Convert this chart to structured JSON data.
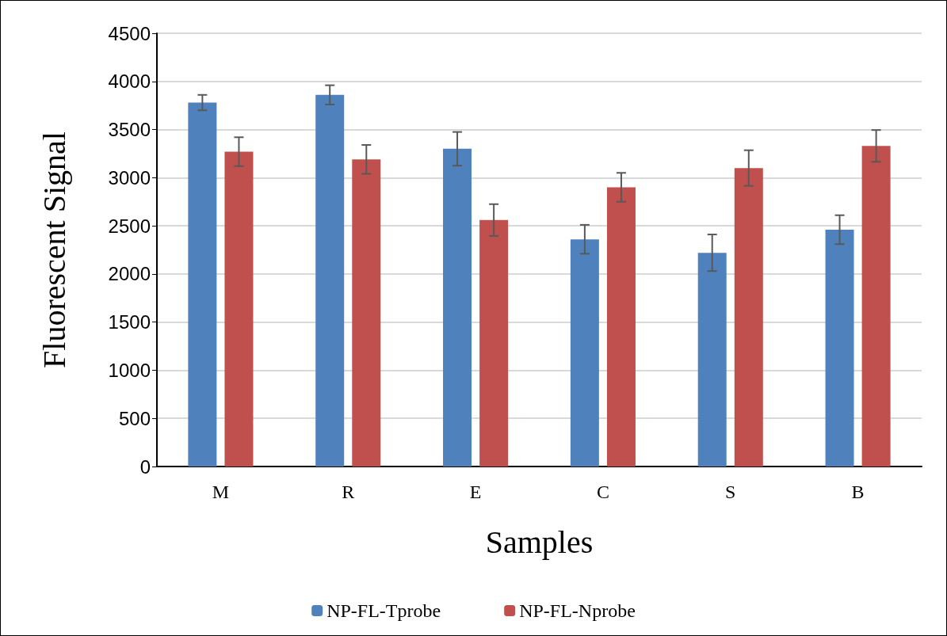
{
  "chart_data": {
    "type": "bar",
    "xlabel": "Samples",
    "ylabel": "Fluorescent Signal",
    "categories": [
      "M",
      "R",
      "E",
      "C",
      "S",
      "B"
    ],
    "series": [
      {
        "name": "NP-FL-Tprobe",
        "color": "#4f81bd",
        "values": [
          3780,
          3860,
          3300,
          2360,
          2220,
          2460
        ],
        "errors": [
          80,
          100,
          175,
          150,
          190,
          150
        ]
      },
      {
        "name": "NP-FL-Nprobe",
        "color": "#c0504d",
        "values": [
          3270,
          3190,
          2560,
          2900,
          3100,
          3330
        ],
        "errors": [
          150,
          150,
          165,
          150,
          185,
          165
        ]
      }
    ],
    "ylim": [
      0,
      4500
    ],
    "yticks": [
      0,
      500,
      1000,
      1500,
      2000,
      2500,
      3000,
      3500,
      4000,
      4500
    ],
    "grid": "y",
    "legend": "bottom"
  }
}
